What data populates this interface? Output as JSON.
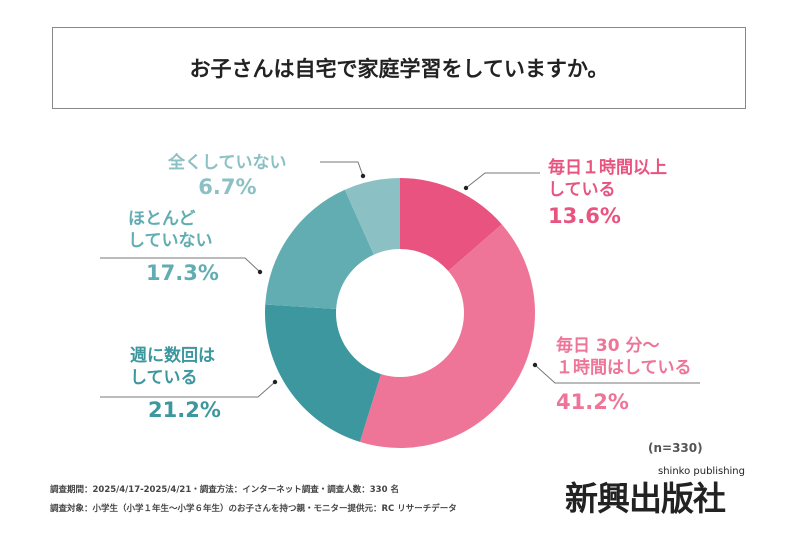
{
  "title": "お子さんは自宅で家庭学習をしていますか。",
  "chart_data": {
    "type": "pie",
    "donut": true,
    "title": "お子さんは自宅で家庭学習をしていますか。",
    "categories": [
      "毎日１時間以上している",
      "毎日 30 分～１時間はしている",
      "週に数回はしている",
      "ほとんどしていない",
      "全くしていない"
    ],
    "values": [
      13.6,
      41.2,
      21.2,
      17.3,
      6.7
    ],
    "colors": [
      "#e8547f",
      "#ee7598",
      "#3d979e",
      "#62adb2",
      "#8bc1c4"
    ],
    "labels": [
      {
        "l1": "毎日１時間以上",
        "l2": "している",
        "pct": "13.6%"
      },
      {
        "l1": "毎日 30 分～",
        "l2": "１時間はしている",
        "pct": "41.2%"
      },
      {
        "l1": "週に数回は",
        "l2": "している",
        "pct": "21.2%"
      },
      {
        "l1": "ほとんど",
        "l2": "していない",
        "pct": "17.3%"
      },
      {
        "l1": "全くしていない",
        "l2": "",
        "pct": "6.7%"
      }
    ],
    "n": "(n=330)"
  },
  "footer": {
    "line1": "調査期間：2025/4/17-2025/4/21・調査方法：インターネット調査・調査人数：330 名",
    "line2": "調査対象：小学生（小学１年生～小学６年生）のお子さんを持つ親・モニター提供元：RC リサーチデータ"
  },
  "logo": {
    "main": "新興出版社",
    "sub": "shinko publishing"
  }
}
